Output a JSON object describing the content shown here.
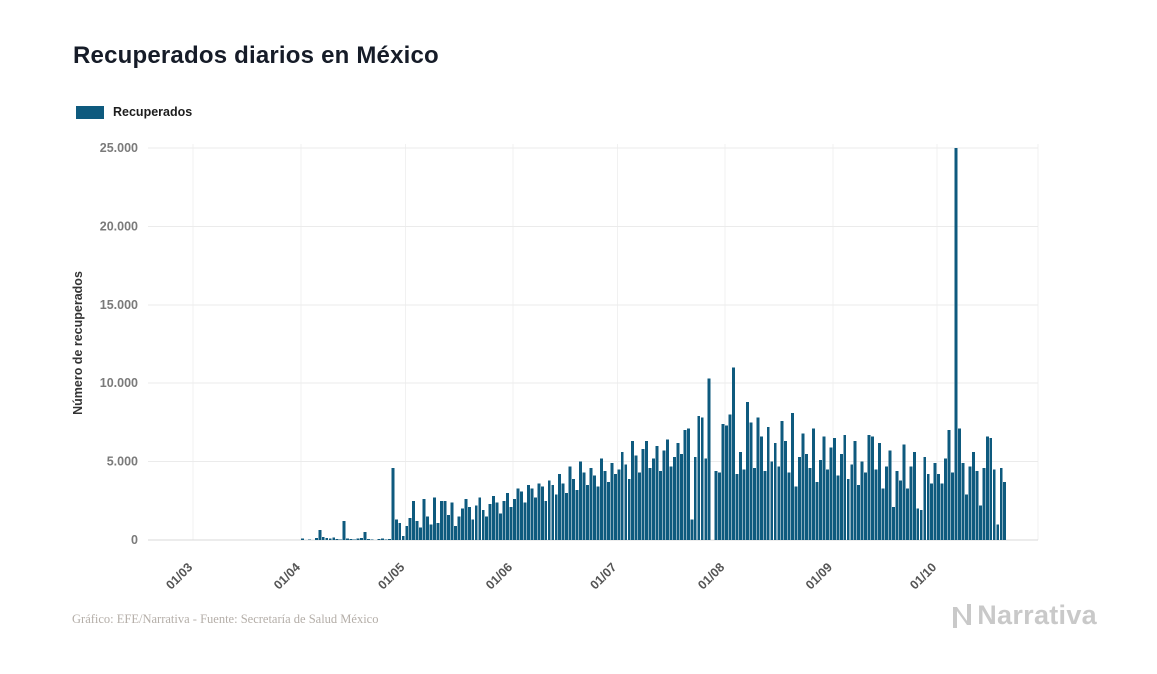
{
  "title": "Recuperados diarios en México",
  "legend": {
    "label": "Recuperados"
  },
  "footer": {
    "credit": "Gráfico: EFE/Narrativa - Fuente: Secretaría de Salud México"
  },
  "logo": {
    "text": "Narrativa"
  },
  "chart_data": {
    "type": "bar",
    "title": "Recuperados diarios en México",
    "series_name": "Recuperados",
    "xlabel": "",
    "ylabel": "Número de recuperados",
    "ylim": [
      0,
      25000
    ],
    "grid": true,
    "legend_position": "top-left",
    "bar_color": "#0e5a7e",
    "domain_days": 256,
    "x_ticks": [
      {
        "label": "01/03",
        "index": 13
      },
      {
        "label": "01/04",
        "index": 44
      },
      {
        "label": "01/05",
        "index": 74
      },
      {
        "label": "01/06",
        "index": 105
      },
      {
        "label": "01/07",
        "index": 135
      },
      {
        "label": "01/08",
        "index": 166
      },
      {
        "label": "01/09",
        "index": 197
      },
      {
        "label": "01/10",
        "index": 227
      }
    ],
    "y_ticks": [
      {
        "value": 0,
        "label": "0"
      },
      {
        "value": 5000,
        "label": "5.000"
      },
      {
        "value": 10000,
        "label": "10.000"
      },
      {
        "value": 15000,
        "label": "15.000"
      },
      {
        "value": 20000,
        "label": "20.000"
      },
      {
        "value": 25000,
        "label": "25.000"
      }
    ],
    "values": [
      0,
      0,
      0,
      0,
      0,
      0,
      0,
      0,
      0,
      0,
      0,
      0,
      0,
      0,
      0,
      0,
      0,
      0,
      0,
      0,
      0,
      0,
      0,
      0,
      0,
      0,
      0,
      0,
      0,
      0,
      0,
      0,
      0,
      0,
      0,
      0,
      0,
      0,
      0,
      0,
      0,
      0,
      0,
      0,
      90,
      0,
      40,
      0,
      120,
      650,
      200,
      120,
      80,
      150,
      60,
      40,
      1200,
      100,
      60,
      40,
      80,
      120,
      500,
      60,
      40,
      0,
      50,
      80,
      40,
      60,
      4600,
      1300,
      1100,
      250,
      900,
      1400,
      2500,
      1200,
      800,
      2600,
      1500,
      1000,
      2700,
      1100,
      2500,
      2500,
      1600,
      2400,
      900,
      1500,
      2000,
      2600,
      2100,
      1300,
      2200,
      2700,
      1900,
      1500,
      2300,
      2800,
      2400,
      1700,
      2500,
      3000,
      2100,
      2600,
      3300,
      3100,
      2400,
      3500,
      3300,
      2700,
      3600,
      3400,
      2500,
      3800,
      3500,
      2900,
      4200,
      3600,
      3000,
      4700,
      3900,
      3200,
      5000,
      4300,
      3500,
      4600,
      4100,
      3400,
      5200,
      4400,
      3700,
      4900,
      4200,
      4500,
      5600,
      4800,
      3900,
      6300,
      5400,
      4300,
      5800,
      6300,
      4600,
      5200,
      6000,
      4400,
      5700,
      6400,
      4700,
      5300,
      6200,
      5500,
      7000,
      7100,
      1300,
      5300,
      7900,
      7800,
      5200,
      10300,
      0,
      4400,
      4300,
      7400,
      7300,
      8000,
      11000,
      4200,
      5600,
      4500,
      8800,
      7500,
      4600,
      7800,
      6600,
      4400,
      7200,
      5000,
      6200,
      4700,
      7600,
      6300,
      4300,
      8100,
      3400,
      5300,
      6800,
      5500,
      4600,
      7100,
      3700,
      5100,
      6600,
      4500,
      5900,
      6500,
      4100,
      5500,
      6700,
      3900,
      4800,
      6300,
      3500,
      5000,
      4300,
      6700,
      6600,
      4500,
      6200,
      3300,
      4700,
      5700,
      2100,
      4400,
      3800,
      6100,
      3300,
      4700,
      5600,
      2000,
      1900,
      5300,
      4200,
      3600,
      4900,
      4200,
      3600,
      5200,
      7000,
      4300,
      25000,
      7100,
      4900,
      2900,
      4700,
      5600,
      4400,
      2200,
      4600,
      6600,
      6500,
      4500,
      1000,
      4600,
      3700
    ]
  }
}
